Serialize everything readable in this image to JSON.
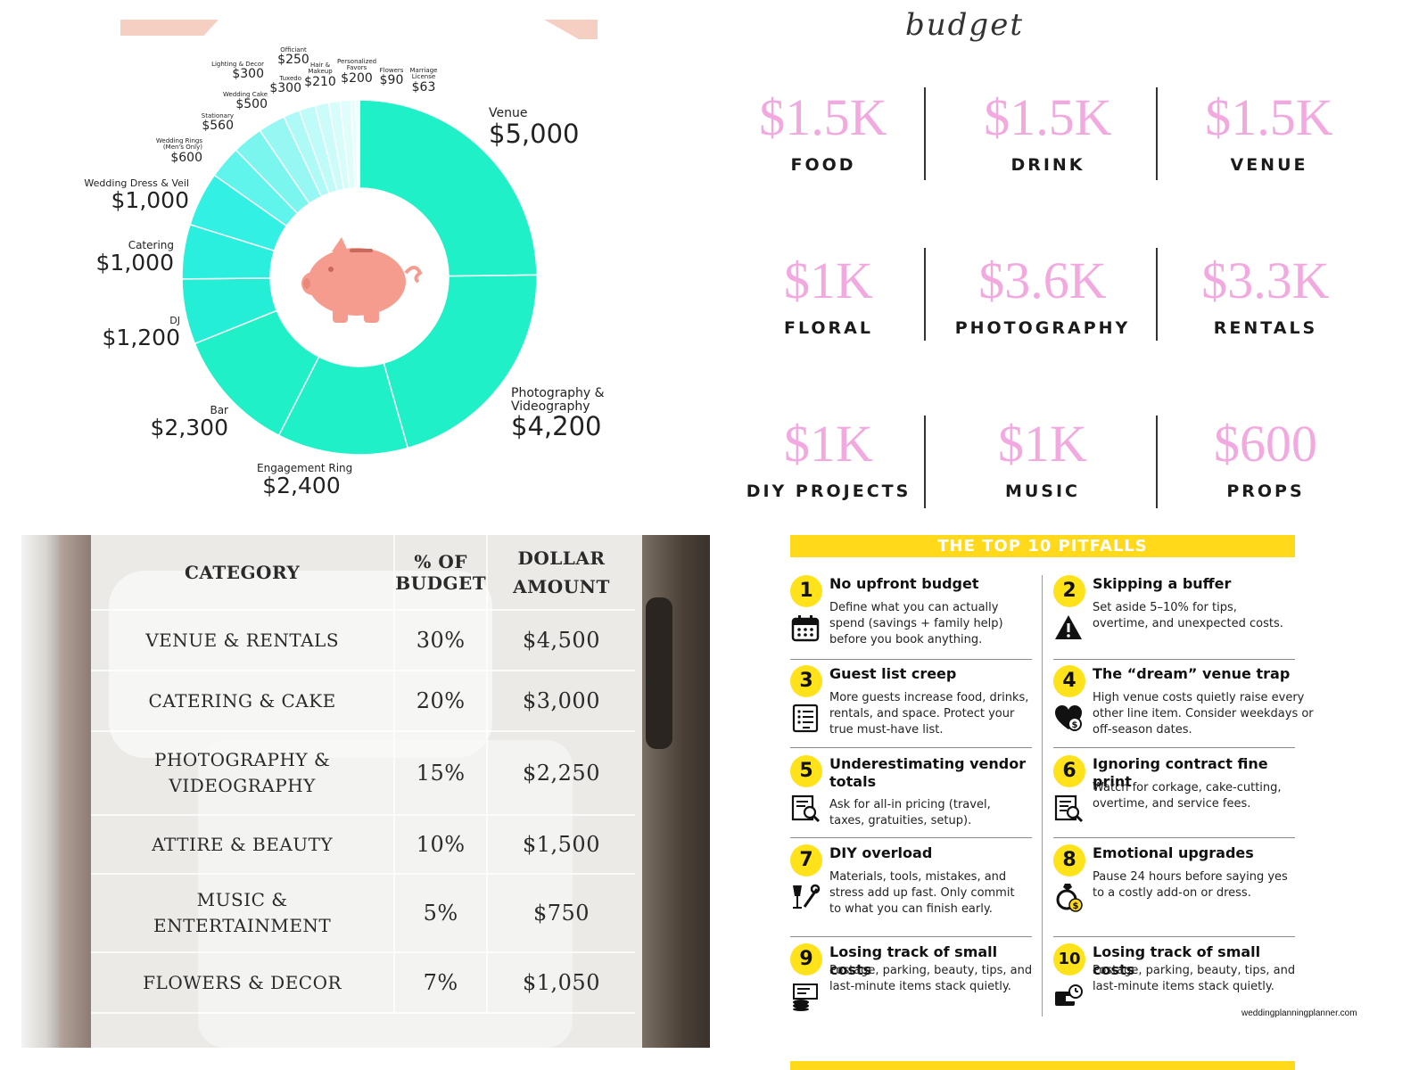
{
  "donut": {
    "chart_data": {
      "type": "pie",
      "title": "",
      "center_icon": "piggy-bank-icon",
      "slices": [
        {
          "name": "Venue",
          "value": 5000,
          "label": "$5,000",
          "color": "#1ff0c8"
        },
        {
          "name": "Photography & Videography",
          "value": 4200,
          "label": "$4,200",
          "color": "#1ff0c8"
        },
        {
          "name": "Engagement Ring",
          "value": 2400,
          "label": "$2,400",
          "color": "#1ff0c8"
        },
        {
          "name": "Bar",
          "value": 2300,
          "label": "$2,300",
          "color": "#1ff0c8"
        },
        {
          "name": "DJ",
          "value": 1200,
          "label": "$1,200",
          "color": "#24efd6"
        },
        {
          "name": "Catering",
          "value": 1000,
          "label": "$1,000",
          "color": "#2aefdf"
        },
        {
          "name": "Wedding Dress & Veil",
          "value": 1000,
          "label": "$1,000",
          "color": "#33f0e5"
        },
        {
          "name": "Wedding Rings (Men's Only)",
          "value": 600,
          "label": "$600",
          "color": "#5ff4ec"
        },
        {
          "name": "Stationary",
          "value": 560,
          "label": "$560",
          "color": "#7bf6ef"
        },
        {
          "name": "Wedding Cake",
          "value": 500,
          "label": "$500",
          "color": "#97f8f3"
        },
        {
          "name": "Lighting & Decor",
          "value": 300,
          "label": "$300",
          "color": "#aefaf6"
        },
        {
          "name": "Tuxedo",
          "value": 300,
          "label": "$300",
          "color": "#bffbf8"
        },
        {
          "name": "Officiant",
          "value": 250,
          "label": "$250",
          "color": "#ccfcf9"
        },
        {
          "name": "Hair & Makeup",
          "value": 210,
          "label": "$210",
          "color": "#d6fdfa"
        },
        {
          "name": "Personalized Favors",
          "value": 200,
          "label": "$200",
          "color": "#dffdfb"
        },
        {
          "name": "Flowers",
          "value": 90,
          "label": "$90",
          "color": "#e6fefc"
        },
        {
          "name": "Marriage License",
          "value": 63,
          "label": "$63",
          "color": "#ecfefd"
        }
      ]
    }
  },
  "budget_grid": {
    "title_fragment": "budget",
    "cells": [
      {
        "amount": "$1.5K",
        "label": "FOOD"
      },
      {
        "amount": "$1.5K",
        "label": "DRINK"
      },
      {
        "amount": "$1.5K",
        "label": "VENUE"
      },
      {
        "amount": "$1K",
        "label": "FLORAL"
      },
      {
        "amount": "$3.6K",
        "label": "PHOTOGRAPHY"
      },
      {
        "amount": "$3.3K",
        "label": "RENTALS"
      },
      {
        "amount": "$1K",
        "label": "DIY PROJECTS"
      },
      {
        "amount": "$1K",
        "label": "MUSIC"
      },
      {
        "amount": "$600",
        "label": "PROPS"
      }
    ],
    "amount_color": "#f2a9df"
  },
  "budget_table": {
    "headers": [
      "CATEGORY",
      "% OF BUDGET",
      "DOLLAR AMOUNT"
    ],
    "rows": [
      {
        "category": "VENUE & RENTALS",
        "percent": "30%",
        "amount": "$4,500"
      },
      {
        "category": "CATERING & CAKE",
        "percent": "20%",
        "amount": "$3,000"
      },
      {
        "category": "PHOTOGRAPHY & VIDEOGRAPHY",
        "percent": "15%",
        "amount": "$2,250"
      },
      {
        "category": "ATTIRE & BEAUTY",
        "percent": "10%",
        "amount": "$1,500"
      },
      {
        "category": "MUSIC & ENTERTAINMENT",
        "percent": "5%",
        "amount": "$750"
      },
      {
        "category": "FLOWERS & DECOR",
        "percent": "7%",
        "amount": "$1,050"
      }
    ]
  },
  "pitfalls": {
    "banner": "THE TOP 10 PITFALLS",
    "credit": "weddingplanningplanner.com",
    "accent": "#ffd91a",
    "items": [
      {
        "num": "1",
        "title": "No upfront budget",
        "desc": "Define what you can actually spend (savings + family help) before you book anything.",
        "icon": "calendar-icon"
      },
      {
        "num": "2",
        "title": "Skipping a buffer",
        "desc": "Set aside 5–10% for tips, overtime, and unexpected costs.",
        "icon": "warning-icon"
      },
      {
        "num": "3",
        "title": "Guest list creep",
        "desc": "More guests increase food, drinks, rentals, and space. Protect your true must-have list.",
        "icon": "checklist-icon"
      },
      {
        "num": "4",
        "title": "The “dream” venue trap",
        "desc": "High venue costs quietly raise every other line item. Consider weekdays or    off-season dates.",
        "icon": "heart-dollar-icon"
      },
      {
        "num": "5",
        "title": "Underestimating vendor totals",
        "desc": "Ask for all-in pricing (travel, taxes, gratuities, setup).",
        "icon": "document-search-icon"
      },
      {
        "num": "6",
        "title": "Ignoring contract fine print",
        "desc": "Watch for corkage, cake-cutting, overtime, and service fees.",
        "icon": "contract-search-icon"
      },
      {
        "num": "7",
        "title": "DIY overload",
        "desc": "Materials, tools, mistakes, and stress add up fast. Only commit to what you can finish early.",
        "icon": "tools-icon"
      },
      {
        "num": "8",
        "title": "Emotional upgrades",
        "desc": "Pause 24 hours before saying yes to a costly add-on or dress.",
        "icon": "ring-dollar-icon"
      },
      {
        "num": "9",
        "title": "Losing track of small costs",
        "desc": "Postage, parking, beauty, tips, and last-minute items stack quietly.",
        "icon": "receipt-coins-icon"
      },
      {
        "num": "10",
        "title": "Losing track of small costs",
        "desc": "Postage, parking, beauty, tips, and last-minute items stack quietly.",
        "icon": "wallet-clock-icon"
      }
    ]
  }
}
